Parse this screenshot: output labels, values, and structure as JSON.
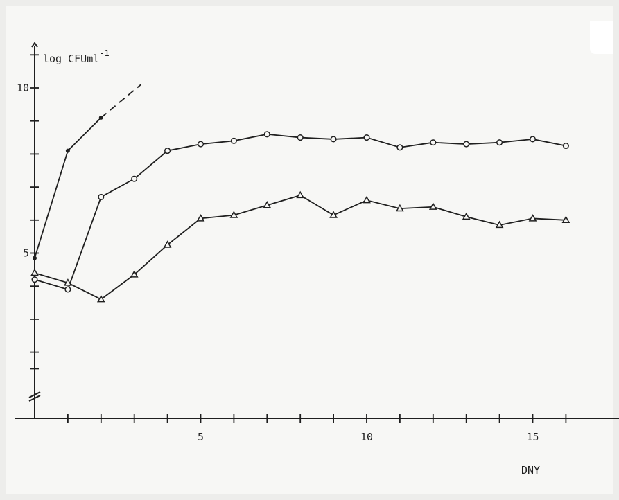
{
  "chart_data": {
    "type": "line",
    "xlabel": "DNY",
    "ylabel": "log CFUml",
    "ylabel_superscript": "-1",
    "xlim": [
      0,
      18
    ],
    "ylim": [
      0,
      12
    ],
    "y_axis_break": true,
    "x_ticks": [
      0,
      1,
      2,
      3,
      4,
      5,
      6,
      7,
      8,
      9,
      10,
      11,
      12,
      13,
      14,
      15,
      16
    ],
    "x_tick_labels": [
      {
        "v": 5,
        "t": "5"
      },
      {
        "v": 10,
        "t": "10"
      },
      {
        "v": 15,
        "t": "15"
      }
    ],
    "y_ticks": [
      1.5,
      2,
      3,
      4,
      5,
      6,
      7,
      8,
      9,
      10,
      11
    ],
    "y_tick_labels": [
      {
        "v": 5,
        "t": "5"
      },
      {
        "v": 10,
        "t": "10"
      }
    ],
    "grid": false,
    "series": [
      {
        "marker": "dot",
        "x": [
          0,
          1,
          2
        ],
        "y": [
          4.85,
          8.1,
          9.1
        ],
        "extrapolated": {
          "x": [
            2,
            3.2
          ],
          "y": [
            9.1,
            10.1
          ]
        }
      },
      {
        "marker": "circle",
        "x": [
          0,
          1,
          2,
          3,
          4,
          5,
          6,
          7,
          8,
          9,
          10,
          11,
          12,
          13,
          14,
          15,
          16
        ],
        "y": [
          4.2,
          3.9,
          6.7,
          7.25,
          8.1,
          8.3,
          8.4,
          8.6,
          8.5,
          8.45,
          8.5,
          8.2,
          8.35,
          8.3,
          8.35,
          8.45,
          8.25
        ]
      },
      {
        "marker": "triangle",
        "x": [
          0,
          1,
          2,
          3,
          4,
          5,
          6,
          7,
          8,
          9,
          10,
          11,
          12,
          13,
          14,
          15,
          16
        ],
        "y": [
          4.4,
          4.1,
          3.6,
          4.35,
          5.25,
          6.05,
          6.15,
          6.45,
          6.75,
          6.15,
          6.6,
          6.35,
          6.4,
          6.1,
          5.85,
          6.05,
          6.0
        ]
      }
    ]
  }
}
